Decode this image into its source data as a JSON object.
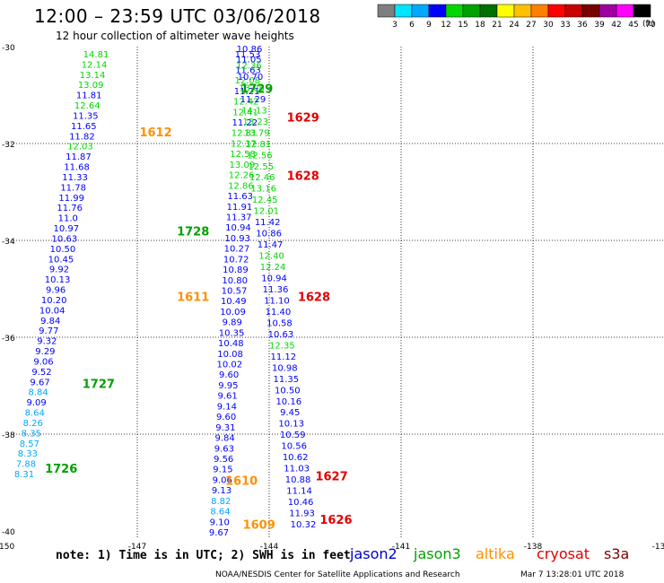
{
  "header": {
    "title": "12:00 – 23:59 UTC 03/06/2018",
    "subtitle": "12 hour collection of altimeter wave heights"
  },
  "legend": {
    "unit": "(ft)",
    "labels": [
      "3",
      "6",
      "9",
      "12",
      "15",
      "18",
      "21",
      "24",
      "27",
      "30",
      "33",
      "36",
      "39",
      "42",
      "45",
      "70"
    ],
    "colors": [
      "#7f7f7f",
      "#00e5ff",
      "#00a8ff",
      "#0000ff",
      "#00d800",
      "#00a000",
      "#007000",
      "#ffff00",
      "#ffc000",
      "#ff8000",
      "#ff0000",
      "#c80000",
      "#780000",
      "#a000a0",
      "#ff00ff",
      "#000000"
    ]
  },
  "axes": {
    "lon_labels": [
      "-150",
      "-147",
      "-144",
      "-141",
      "-138",
      "-13"
    ],
    "lat_labels": [
      "-30",
      "-32",
      "-34",
      "-36",
      "-38",
      "-40"
    ]
  },
  "footer": {
    "note": "note: 1) Time is in UTC; 2) SWH is in feet",
    "credit": "NOAA/NESDIS Center for Satellite Applications and Research",
    "timestamp": "Mar  7 13:28:01 UTC 2018",
    "satellites": [
      {
        "name": "jason2",
        "color": "#0000c8"
      },
      {
        "name": "jason3",
        "color": "#00a000"
      },
      {
        "name": "altika",
        "color": "#ff9000"
      },
      {
        "name": "cryosat",
        "color": "#e00000"
      },
      {
        "name": "s3a",
        "color": "#800000"
      }
    ]
  },
  "time_labels": [
    {
      "text": "1612",
      "lon": -146.95,
      "lat": -31.85,
      "color": "#ff9000"
    },
    {
      "text": "1729",
      "lon": -144.65,
      "lat": -30.95,
      "color": "#00a000"
    },
    {
      "text": "1629",
      "lon": -143.6,
      "lat": -31.55,
      "color": "#e00000"
    },
    {
      "text": "1628",
      "lon": -143.6,
      "lat": -32.75,
      "color": "#e00000"
    },
    {
      "text": "1728",
      "lon": -146.1,
      "lat": -33.9,
      "color": "#00a000"
    },
    {
      "text": "1611",
      "lon": -146.1,
      "lat": -35.25,
      "color": "#ff9000"
    },
    {
      "text": "1628",
      "lon": -143.35,
      "lat": -35.25,
      "color": "#e00000"
    },
    {
      "text": "1727",
      "lon": -148.25,
      "lat": -37.05,
      "color": "#00a000"
    },
    {
      "text": "1726",
      "lon": -149.1,
      "lat": -38.8,
      "color": "#00a000"
    },
    {
      "text": "1610",
      "lon": -145.0,
      "lat": -39.05,
      "color": "#ff9000"
    },
    {
      "text": "1627",
      "lon": -142.95,
      "lat": -38.95,
      "color": "#e00000"
    },
    {
      "text": "1626",
      "lon": -142.85,
      "lat": -39.85,
      "color": "#e00000"
    },
    {
      "text": "1609",
      "lon": -144.6,
      "lat": -39.95,
      "color": "#ff9000"
    }
  ],
  "track_data": [
    {
      "name": "trackA",
      "values": [
        [
          "14.81",
          "#00d800"
        ],
        [
          "12.14",
          "#00d800"
        ],
        [
          "13.14",
          "#00d800"
        ],
        [
          "13.09",
          "#00d800"
        ],
        [
          "11.81",
          "#0000ff"
        ],
        [
          "12.64",
          "#00d800"
        ],
        [
          "11.35",
          "#0000ff"
        ],
        [
          "11.65",
          "#0000ff"
        ],
        [
          "11.82",
          "#0000ff"
        ],
        [
          "12.03",
          "#00d800"
        ],
        [
          "11.87",
          "#0000ff"
        ],
        [
          "11.68",
          "#0000ff"
        ],
        [
          "11.33",
          "#0000ff"
        ],
        [
          "11.78",
          "#0000ff"
        ],
        [
          "11.99",
          "#0000ff"
        ],
        [
          "11.76",
          "#0000ff"
        ],
        [
          "11.0",
          "#0000ff"
        ],
        [
          "10.97",
          "#0000ff"
        ],
        [
          "10.63",
          "#0000ff"
        ],
        [
          "10.50",
          "#0000ff"
        ],
        [
          "10.45",
          "#0000ff"
        ],
        [
          "9.92",
          "#0000ff"
        ],
        [
          "10.13",
          "#0000ff"
        ],
        [
          "9.96",
          "#0000ff"
        ],
        [
          "10.20",
          "#0000ff"
        ],
        [
          "10.04",
          "#0000ff"
        ],
        [
          "9.84",
          "#0000ff"
        ],
        [
          "9.77",
          "#0000ff"
        ],
        [
          "9.32",
          "#0000ff"
        ],
        [
          "9.29",
          "#0000ff"
        ],
        [
          "9.06",
          "#0000ff"
        ],
        [
          "9.52",
          "#0000ff"
        ],
        [
          "9.67",
          "#0000ff"
        ],
        [
          "8.84",
          "#00a8ff"
        ],
        [
          "9.09",
          "#0000ff"
        ],
        [
          "8.64",
          "#00a8ff"
        ],
        [
          "8.26",
          "#00a8ff"
        ],
        [
          "8.35",
          "#00a8ff"
        ],
        [
          "8.57",
          "#00a8ff"
        ],
        [
          "8.33",
          "#00a8ff"
        ],
        [
          "7.88",
          "#00a8ff"
        ],
        [
          "8.31",
          "#00a8ff"
        ]
      ]
    },
    {
      "name": "trackB",
      "values": [
        [
          "10.86",
          "#0000ff"
        ],
        [
          "11.05",
          "#0000ff"
        ],
        [
          "11.63",
          "#0000ff"
        ],
        [
          "12.08",
          "#00d800"
        ],
        [
          "11.21",
          "#0000ff"
        ],
        [
          "12.42",
          "#00d800"
        ],
        [
          "12.41",
          "#00d800"
        ],
        [
          "11.22",
          "#0000ff"
        ],
        [
          "12.81",
          "#00d800"
        ],
        [
          "12.37",
          "#00d800"
        ],
        [
          "12.58",
          "#00d800"
        ],
        [
          "13.09",
          "#00d800"
        ],
        [
          "12.26",
          "#00d800"
        ],
        [
          "12.86",
          "#00d800"
        ],
        [
          "11.63",
          "#0000ff"
        ],
        [
          "11.91",
          "#0000ff"
        ],
        [
          "11.37",
          "#0000ff"
        ],
        [
          "10.94",
          "#0000ff"
        ],
        [
          "10.93",
          "#0000ff"
        ],
        [
          "10.27",
          "#0000ff"
        ],
        [
          "10.72",
          "#0000ff"
        ],
        [
          "10.89",
          "#0000ff"
        ],
        [
          "10.80",
          "#0000ff"
        ],
        [
          "10.57",
          "#0000ff"
        ],
        [
          "10.49",
          "#0000ff"
        ],
        [
          "10.09",
          "#0000ff"
        ],
        [
          "9.89",
          "#0000ff"
        ],
        [
          "10.35",
          "#0000ff"
        ],
        [
          "10.48",
          "#0000ff"
        ],
        [
          "10.08",
          "#0000ff"
        ],
        [
          "10.02",
          "#0000ff"
        ],
        [
          "9.60",
          "#0000ff"
        ],
        [
          "9.95",
          "#0000ff"
        ],
        [
          "9.61",
          "#0000ff"
        ],
        [
          "9.14",
          "#0000ff"
        ],
        [
          "9.60",
          "#0000ff"
        ],
        [
          "9.31",
          "#0000ff"
        ],
        [
          "9.84",
          "#0000ff"
        ],
        [
          "9.63",
          "#0000ff"
        ],
        [
          "9.56",
          "#0000ff"
        ],
        [
          "9.15",
          "#0000ff"
        ],
        [
          "9.06",
          "#0000ff"
        ],
        [
          "9.13",
          "#0000ff"
        ],
        [
          "8.82",
          "#00a8ff"
        ],
        [
          "8.64",
          "#00a8ff"
        ],
        [
          "9.10",
          "#0000ff"
        ],
        [
          "9.67",
          "#0000ff"
        ]
      ]
    },
    {
      "name": "trackC",
      "values": [
        [
          "11.53",
          "#0000ff"
        ],
        [
          "12.36",
          "#00d800"
        ],
        [
          "10.70",
          "#0000ff"
        ],
        [
          "13.08",
          "#00d800"
        ],
        [
          "11.29",
          "#0000ff"
        ],
        [
          "14.13",
          "#00d800"
        ],
        [
          "13.23",
          "#00d800"
        ],
        [
          "13.79",
          "#00d800"
        ],
        [
          "12.81",
          "#00d800"
        ],
        [
          "12.56",
          "#00d800"
        ],
        [
          "12.55",
          "#00d800"
        ],
        [
          "12.46",
          "#00d800"
        ],
        [
          "13.16",
          "#00d800"
        ],
        [
          "12.45",
          "#00d800"
        ],
        [
          "12.01",
          "#00d800"
        ],
        [
          "11.42",
          "#0000ff"
        ],
        [
          "10.86",
          "#0000ff"
        ],
        [
          "11.47",
          "#0000ff"
        ],
        [
          "12.40",
          "#00d800"
        ],
        [
          "12.24",
          "#00d800"
        ],
        [
          "10.94",
          "#0000ff"
        ],
        [
          "11.36",
          "#0000ff"
        ],
        [
          "11.10",
          "#0000ff"
        ],
        [
          "11.40",
          "#0000ff"
        ],
        [
          "10.58",
          "#0000ff"
        ],
        [
          "10.63",
          "#0000ff"
        ],
        [
          "12.35",
          "#00d800"
        ],
        [
          "11.12",
          "#0000ff"
        ],
        [
          "10.98",
          "#0000ff"
        ],
        [
          "11.35",
          "#0000ff"
        ],
        [
          "10.50",
          "#0000ff"
        ],
        [
          "10.16",
          "#0000ff"
        ],
        [
          "9.45",
          "#0000ff"
        ],
        [
          "10.13",
          "#0000ff"
        ],
        [
          "10.59",
          "#0000ff"
        ],
        [
          "10.56",
          "#0000ff"
        ],
        [
          "10.62",
          "#0000ff"
        ],
        [
          "11.03",
          "#0000ff"
        ],
        [
          "10.88",
          "#0000ff"
        ],
        [
          "11.14",
          "#0000ff"
        ],
        [
          "10.46",
          "#0000ff"
        ],
        [
          "11.93",
          "#0000ff"
        ],
        [
          "10.32",
          "#0000ff"
        ]
      ]
    }
  ]
}
